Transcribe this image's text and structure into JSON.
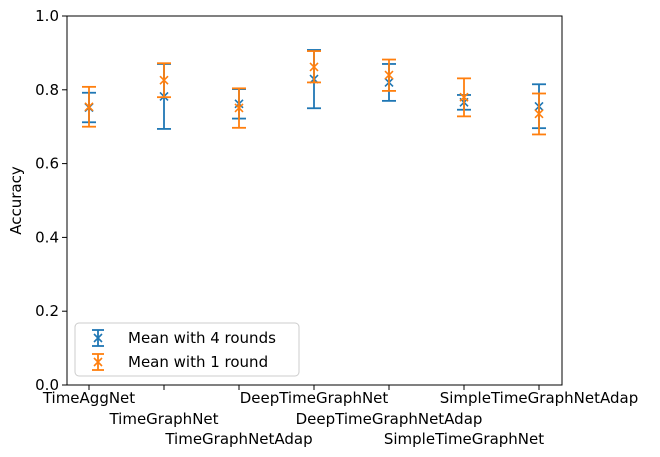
{
  "chart_data": {
    "type": "errorbar",
    "ylabel": "Accuracy",
    "xlabel": "",
    "ylim": [
      0.0,
      1.0
    ],
    "yticks": [
      "0.0",
      "0.2",
      "0.4",
      "0.6",
      "0.8",
      "1.0"
    ],
    "categories": [
      "TimeAggNet",
      "TimeGraphNet",
      "TimeGraphNetAdap",
      "DeepTimeGraphNet",
      "DeepTimeGraphNetAdap",
      "SimpleTimeGraphNet",
      "SimpleTimeGraphNetAdap"
    ],
    "x_label_rows": [
      0,
      1,
      2,
      0,
      1,
      2,
      0
    ],
    "legend_position": "lower-left",
    "grid": false,
    "series": [
      {
        "name": "Mean with 4 rounds",
        "color": "#1f77b4",
        "marker": "x",
        "values": [
          0.752,
          0.782,
          0.762,
          0.829,
          0.82,
          0.766,
          0.755
        ],
        "lower": [
          0.712,
          0.694,
          0.722,
          0.75,
          0.77,
          0.746,
          0.696
        ],
        "upper": [
          0.792,
          0.87,
          0.802,
          0.908,
          0.87,
          0.786,
          0.815
        ]
      },
      {
        "name": "Mean with 1 round",
        "color": "#ff7f0e",
        "marker": "x",
        "values": [
          0.754,
          0.826,
          0.751,
          0.862,
          0.84,
          0.78,
          0.735
        ],
        "lower": [
          0.7,
          0.78,
          0.697,
          0.82,
          0.797,
          0.728,
          0.679
        ],
        "upper": [
          0.808,
          0.872,
          0.804,
          0.905,
          0.882,
          0.831,
          0.79
        ]
      }
    ]
  }
}
